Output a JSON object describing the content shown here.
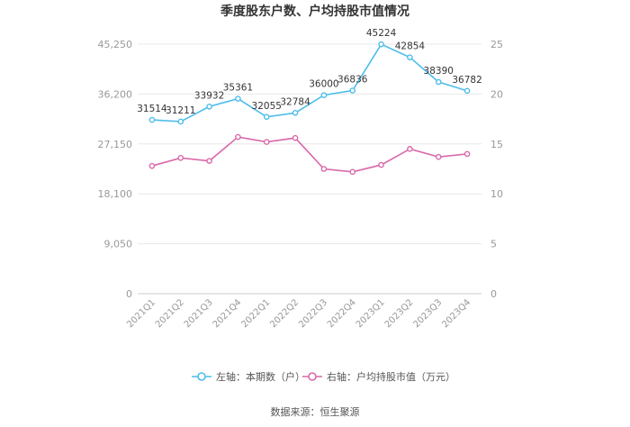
{
  "title": "季度股东户数、户均持股市值情况",
  "source": "数据来源：恒生聚源",
  "colors": {
    "left": "#4DBDEB",
    "right": "#D968A9",
    "axis": "#999999",
    "grid": "#e8e8e8",
    "label": "#333333"
  },
  "chart_data": {
    "type": "line",
    "categories": [
      "2021Q1",
      "2021Q2",
      "2021Q3",
      "2021Q4",
      "2022Q1",
      "2022Q2",
      "2022Q3",
      "2022Q4",
      "2023Q1",
      "2023Q2",
      "2023Q3",
      "2023Q4"
    ],
    "series": [
      {
        "name": "左轴：本期数（户）",
        "axis": "left",
        "values": [
          31514,
          31211,
          33932,
          35361,
          32055,
          32784,
          36000,
          36836,
          45224,
          42854,
          38390,
          36782
        ],
        "labels": [
          "31514",
          "31211",
          "33932",
          "35361",
          "32055",
          "32784",
          "36000",
          "36836",
          "45224",
          "42854",
          "38390",
          "36782"
        ]
      },
      {
        "name": "右轴：户均持股市值（万元）",
        "axis": "right",
        "values": [
          12.8,
          13.6,
          13.3,
          15.7,
          15.2,
          15.6,
          12.5,
          12.2,
          12.9,
          14.5,
          13.7,
          14.0
        ]
      }
    ],
    "left_axis": {
      "ylim": [
        0,
        45250
      ],
      "ticks": [
        0,
        9050,
        18100,
        27150,
        36200,
        45250
      ],
      "tick_labels": [
        "0",
        "9,050",
        "18,100",
        "27,150",
        "36,200",
        "45,250"
      ]
    },
    "right_axis": {
      "ylim": [
        0,
        25
      ],
      "ticks": [
        0,
        5,
        10,
        15,
        20,
        25
      ],
      "tick_labels": [
        "0",
        "5",
        "10",
        "15",
        "20",
        "25"
      ]
    },
    "legend_position": "bottom",
    "grid": "horizontal"
  }
}
